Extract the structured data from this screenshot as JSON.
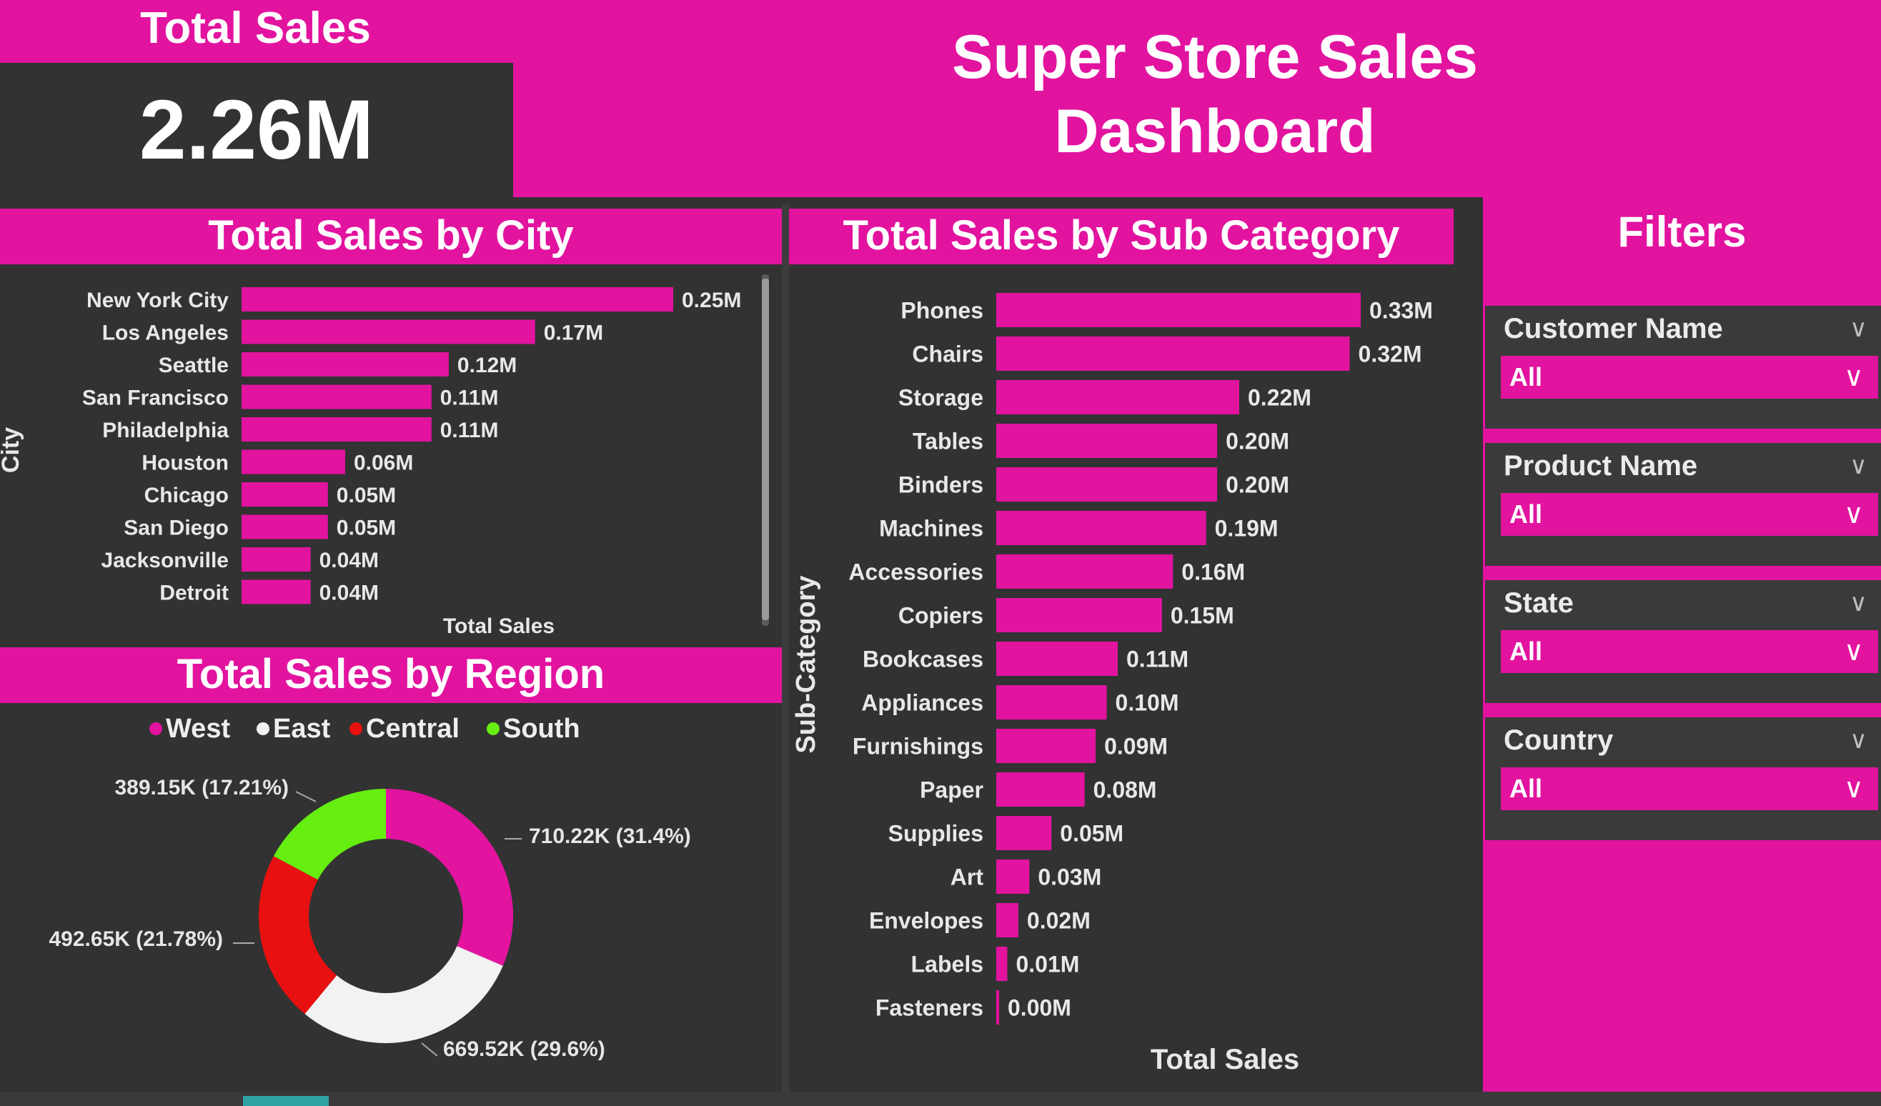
{
  "kpi": {
    "title": "Total Sales",
    "value": "2.26M"
  },
  "dashboard": {
    "title_line1": "Super Store Sales",
    "title_line2": "Dashboard"
  },
  "colors": {
    "accent": "#e2139f",
    "panel": "#323232",
    "west": "#e2139f",
    "east": "#f2f2f2",
    "central": "#e81010",
    "south": "#66ee11"
  },
  "city_chart": {
    "title": "Total Sales by City",
    "ylabel": "City",
    "xlabel": "Total Sales"
  },
  "subcat_chart": {
    "title": "Total Sales by Sub Category",
    "ylabel": "Sub-Category",
    "xlabel": "Total Sales"
  },
  "region_chart": {
    "title": "Total Sales by Region"
  },
  "filters": {
    "title": "Filters",
    "items": [
      {
        "label": "Customer Name",
        "value": "All"
      },
      {
        "label": "Product Name",
        "value": "All"
      },
      {
        "label": "State",
        "value": "All"
      },
      {
        "label": "Country",
        "value": "All"
      }
    ]
  },
  "chart_data": [
    {
      "type": "bar",
      "orientation": "horizontal",
      "title": "Total Sales by City",
      "xlabel": "Total Sales",
      "ylabel": "City",
      "categories": [
        "New York City",
        "Los Angeles",
        "Seattle",
        "San Francisco",
        "Philadelphia",
        "Houston",
        "Chicago",
        "San Diego",
        "Jacksonville",
        "Detroit"
      ],
      "values": [
        0.25,
        0.17,
        0.12,
        0.11,
        0.11,
        0.06,
        0.05,
        0.05,
        0.04,
        0.04
      ],
      "labels": [
        "0.25M",
        "0.17M",
        "0.12M",
        "0.11M",
        "0.11M",
        "0.06M",
        "0.05M",
        "0.05M",
        "0.04M",
        "0.04M"
      ],
      "unit": "M",
      "grid": false
    },
    {
      "type": "bar",
      "orientation": "horizontal",
      "title": "Total Sales by Sub Category",
      "xlabel": "Total Sales",
      "ylabel": "Sub-Category",
      "categories": [
        "Phones",
        "Chairs",
        "Storage",
        "Tables",
        "Binders",
        "Machines",
        "Accessories",
        "Copiers",
        "Bookcases",
        "Appliances",
        "Furnishings",
        "Paper",
        "Supplies",
        "Art",
        "Envelopes",
        "Labels",
        "Fasteners"
      ],
      "values": [
        0.33,
        0.32,
        0.22,
        0.2,
        0.2,
        0.19,
        0.16,
        0.15,
        0.11,
        0.1,
        0.09,
        0.08,
        0.05,
        0.03,
        0.02,
        0.01,
        0.0
      ],
      "labels": [
        "0.33M",
        "0.32M",
        "0.22M",
        "0.20M",
        "0.20M",
        "0.19M",
        "0.16M",
        "0.15M",
        "0.11M",
        "0.10M",
        "0.09M",
        "0.08M",
        "0.05M",
        "0.03M",
        "0.02M",
        "0.01M",
        "0.00M"
      ],
      "unit": "M",
      "grid": false
    },
    {
      "type": "pie",
      "donut": true,
      "title": "Total Sales by Region",
      "legend_position": "top",
      "series": [
        {
          "name": "West",
          "value": 710.22,
          "label": "710.22K (31.4%)"
        },
        {
          "name": "East",
          "value": 669.52,
          "label": "669.52K (29.6%)"
        },
        {
          "name": "Central",
          "value": 492.65,
          "label": "492.65K (21.78%)"
        },
        {
          "name": "South",
          "value": 389.15,
          "label": "389.15K (17.21%)"
        }
      ]
    }
  ]
}
